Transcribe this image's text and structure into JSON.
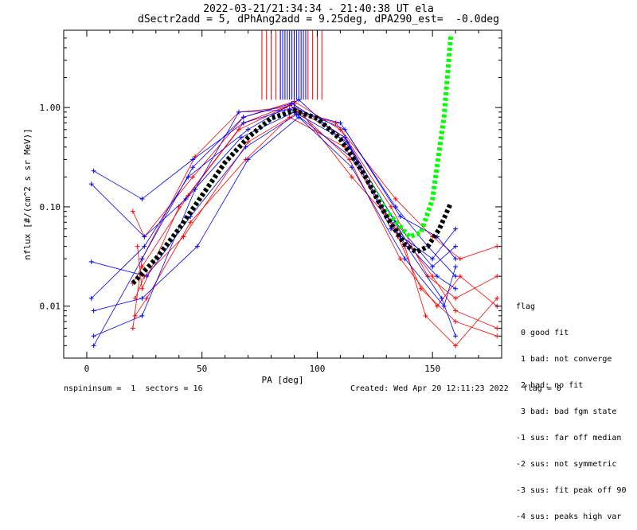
{
  "title_line1": "2022-03-21/21:34:34 - 21:40:38 UT ela",
  "title_line2": "dSectr2add = 5, dPhAng2add = 9.25deg, dPA290_est=  -0.0deg",
  "legend": {
    "title": "flag",
    "items": [
      " 0 good fit",
      " 1 bad: not converge",
      " 2 bad: no fit",
      " 3 bad: bad fgm state",
      "-1 sus: far off median",
      "-2 sus: not symmetric",
      "-3 sus: fit peak off 90",
      "-4 sus: peaks high var"
    ]
  },
  "footer": {
    "left": "nspininsum =  1  sectors = 16",
    "right": "Created: Wed Apr 20 12:11:23 2022   flag = 0"
  },
  "colors": {
    "red": "#ff0000",
    "blue": "#0000ff",
    "green": "#00ff00",
    "black": "#000000"
  },
  "chart_data": {
    "type": "line",
    "xlabel": "PA [deg]",
    "ylabel": "nflux [#/(cm^2 s sr MeV)]",
    "xlim": [
      -10,
      180
    ],
    "ylim": [
      0.003,
      6.0
    ],
    "yscale": "log",
    "xticks": [
      0,
      50,
      100,
      150
    ],
    "yticks": [
      0.01,
      0.1,
      1.0
    ],
    "ytick_labels": [
      "0.01",
      "0.10",
      "1.00"
    ],
    "series": [
      {
        "color": "red",
        "style": "line-plus",
        "x": [
          20,
          24,
          44,
          66,
          88,
          112,
          135,
          145,
          160,
          178
        ],
        "y": [
          0.017,
          0.025,
          0.13,
          0.6,
          1.05,
          0.5,
          0.05,
          0.015,
          0.007,
          0.005
        ]
      },
      {
        "color": "red",
        "style": "line-plus",
        "x": [
          20,
          25,
          46,
          68,
          90,
          110,
          132,
          148,
          160,
          178
        ],
        "y": [
          0.09,
          0.05,
          0.2,
          0.8,
          1.15,
          0.6,
          0.1,
          0.02,
          0.012,
          0.02
        ]
      },
      {
        "color": "red",
        "style": "line-plus",
        "x": [
          21,
          25,
          42,
          70,
          92,
          114,
          136,
          152,
          162,
          178
        ],
        "y": [
          0.012,
          0.02,
          0.05,
          0.45,
          0.9,
          0.3,
          0.03,
          0.01,
          0.02,
          0.01
        ]
      },
      {
        "color": "red",
        "style": "line-plus",
        "x": [
          20,
          24,
          47,
          66,
          86,
          108,
          134,
          150,
          162,
          178
        ],
        "y": [
          0.006,
          0.03,
          0.32,
          0.9,
          1.0,
          0.7,
          0.12,
          0.05,
          0.03,
          0.04
        ]
      },
      {
        "color": "red",
        "style": "line-plus",
        "x": [
          21,
          26,
          45,
          69,
          88,
          112,
          138,
          147,
          160,
          178
        ],
        "y": [
          0.008,
          0.012,
          0.07,
          0.3,
          0.8,
          0.4,
          0.04,
          0.008,
          0.004,
          0.012
        ]
      },
      {
        "color": "red",
        "style": "line-plus",
        "x": [
          22,
          24,
          40,
          68,
          90,
          115,
          135,
          150,
          160,
          178
        ],
        "y": [
          0.04,
          0.015,
          0.1,
          0.7,
          1.1,
          0.2,
          0.06,
          0.02,
          0.009,
          0.006
        ]
      },
      {
        "color": "blue",
        "style": "line-plus",
        "x": [
          3,
          24,
          46,
          68,
          90,
          112,
          136,
          152,
          160
        ],
        "y": [
          0.23,
          0.12,
          0.3,
          0.7,
          1.0,
          0.6,
          0.08,
          0.05,
          0.03
        ]
      },
      {
        "color": "blue",
        "style": "line-plus",
        "x": [
          2,
          25,
          44,
          70,
          92,
          114,
          132,
          150,
          160
        ],
        "y": [
          0.012,
          0.04,
          0.2,
          0.6,
          1.2,
          0.4,
          0.06,
          0.03,
          0.06
        ]
      },
      {
        "color": "blue",
        "style": "line-plus",
        "x": [
          3,
          24,
          47,
          66,
          88,
          110,
          134,
          148,
          160
        ],
        "y": [
          0.005,
          0.008,
          0.15,
          0.9,
          0.95,
          0.7,
          0.1,
          0.04,
          0.02
        ]
      },
      {
        "color": "blue",
        "style": "line-plus",
        "x": [
          2,
          26,
          45,
          69,
          91,
          116,
          136,
          154,
          160
        ],
        "y": [
          0.028,
          0.02,
          0.08,
          0.4,
          0.85,
          0.3,
          0.05,
          0.012,
          0.005
        ]
      },
      {
        "color": "blue",
        "style": "line-plus",
        "x": [
          3,
          24,
          46,
          68,
          89,
          112,
          140,
          152,
          160
        ],
        "y": [
          0.004,
          0.03,
          0.25,
          0.8,
          1.1,
          0.5,
          0.04,
          0.02,
          0.015
        ]
      },
      {
        "color": "blue",
        "style": "line-plus",
        "x": [
          2,
          25,
          43,
          67,
          90,
          113,
          134,
          150,
          160
        ],
        "y": [
          0.17,
          0.05,
          0.12,
          0.5,
          0.9,
          0.45,
          0.07,
          0.025,
          0.04
        ]
      },
      {
        "color": "blue",
        "style": "line-plus",
        "x": [
          3,
          24,
          48,
          70,
          92,
          115,
          138,
          155,
          160
        ],
        "y": [
          0.009,
          0.012,
          0.04,
          0.3,
          0.8,
          0.25,
          0.03,
          0.01,
          0.025
        ]
      },
      {
        "color": "green",
        "style": "dotted-fit",
        "x": [
          20,
          30,
          40,
          50,
          60,
          70,
          80,
          90,
          100,
          110,
          120,
          130,
          140,
          145,
          150,
          155,
          158
        ],
        "y": [
          0.017,
          0.03,
          0.06,
          0.13,
          0.28,
          0.5,
          0.78,
          0.93,
          0.78,
          0.48,
          0.22,
          0.09,
          0.05,
          0.055,
          0.12,
          0.8,
          5.5
        ]
      },
      {
        "color": "black",
        "style": "dotted-fit",
        "x": [
          20,
          30,
          40,
          50,
          60,
          70,
          80,
          90,
          100,
          110,
          120,
          130,
          138,
          143,
          148,
          153,
          158
        ],
        "y": [
          0.017,
          0.03,
          0.06,
          0.13,
          0.28,
          0.5,
          0.78,
          0.93,
          0.78,
          0.48,
          0.22,
          0.08,
          0.042,
          0.035,
          0.04,
          0.06,
          0.11
        ]
      }
    ],
    "vertical_lines": [
      {
        "color": "red",
        "x": [
          76,
          78,
          80,
          82,
          84,
          96,
          98,
          100,
          102
        ]
      },
      {
        "color": "blue",
        "x": [
          84,
          85,
          86,
          87,
          88,
          89,
          90,
          91,
          92,
          93,
          94,
          95
        ]
      }
    ],
    "vertical_lines_ymin": 1.2
  }
}
